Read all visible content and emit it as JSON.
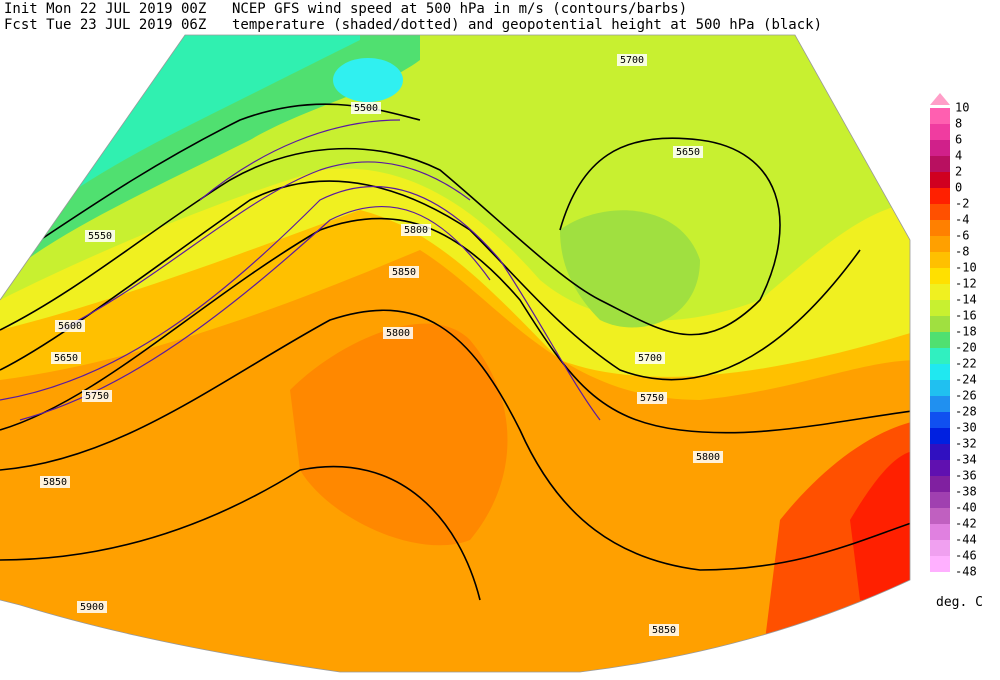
{
  "header": {
    "init": "Init  Mon 22 JUL 2019 00Z",
    "forecast": "Fcst Tue 23 JUL 2019 06Z",
    "title1": "NCEP GFS wind speed at 500 hPa in m/s (contours/barbs)",
    "title2": "temperature (shaded/dotted) and geopotential height at 500 hPa (black)"
  },
  "colorbar": {
    "unit": "deg. C",
    "items": [
      {
        "value": 10,
        "color": "#ff9ec8"
      },
      {
        "value": 8,
        "color": "#ff5fb0"
      },
      {
        "value": 6,
        "color": "#f03ca0"
      },
      {
        "value": 4,
        "color": "#d0208a"
      },
      {
        "value": 2,
        "color": "#b81060"
      },
      {
        "value": 0,
        "color": "#d00020"
      },
      {
        "value": -2,
        "color": "#ff2000"
      },
      {
        "value": -4,
        "color": "#ff5000"
      },
      {
        "value": -6,
        "color": "#ff8000"
      },
      {
        "value": -8,
        "color": "#ffa000"
      },
      {
        "value": -10,
        "color": "#ffc000"
      },
      {
        "value": -12,
        "color": "#ffe000"
      },
      {
        "value": -14,
        "color": "#f0f020"
      },
      {
        "value": -16,
        "color": "#c8f030"
      },
      {
        "value": -18,
        "color": "#a0e040"
      },
      {
        "value": -20,
        "color": "#50e070"
      },
      {
        "value": -22,
        "color": "#30f0c0"
      },
      {
        "value": -24,
        "color": "#20e8f0"
      },
      {
        "value": -26,
        "color": "#20c0f0"
      },
      {
        "value": -28,
        "color": "#2090f0"
      },
      {
        "value": -30,
        "color": "#1050f0"
      },
      {
        "value": -32,
        "color": "#0020e0"
      },
      {
        "value": -34,
        "color": "#3010c0"
      },
      {
        "value": -36,
        "color": "#6010b0"
      },
      {
        "value": -38,
        "color": "#8020a0"
      },
      {
        "value": -40,
        "color": "#a040b0"
      },
      {
        "value": -42,
        "color": "#c060c0"
      },
      {
        "value": -44,
        "color": "#e080e0"
      },
      {
        "value": -46,
        "color": "#f0a0f0"
      },
      {
        "value": -48,
        "color": "#ffb0ff"
      }
    ]
  },
  "contour_labels": [
    "5500",
    "5550",
    "5600",
    "5650",
    "5700",
    "5750",
    "5800",
    "5850",
    "5900",
    "5700",
    "5650",
    "5750",
    "5800",
    "5850",
    "5850",
    "5800"
  ]
}
